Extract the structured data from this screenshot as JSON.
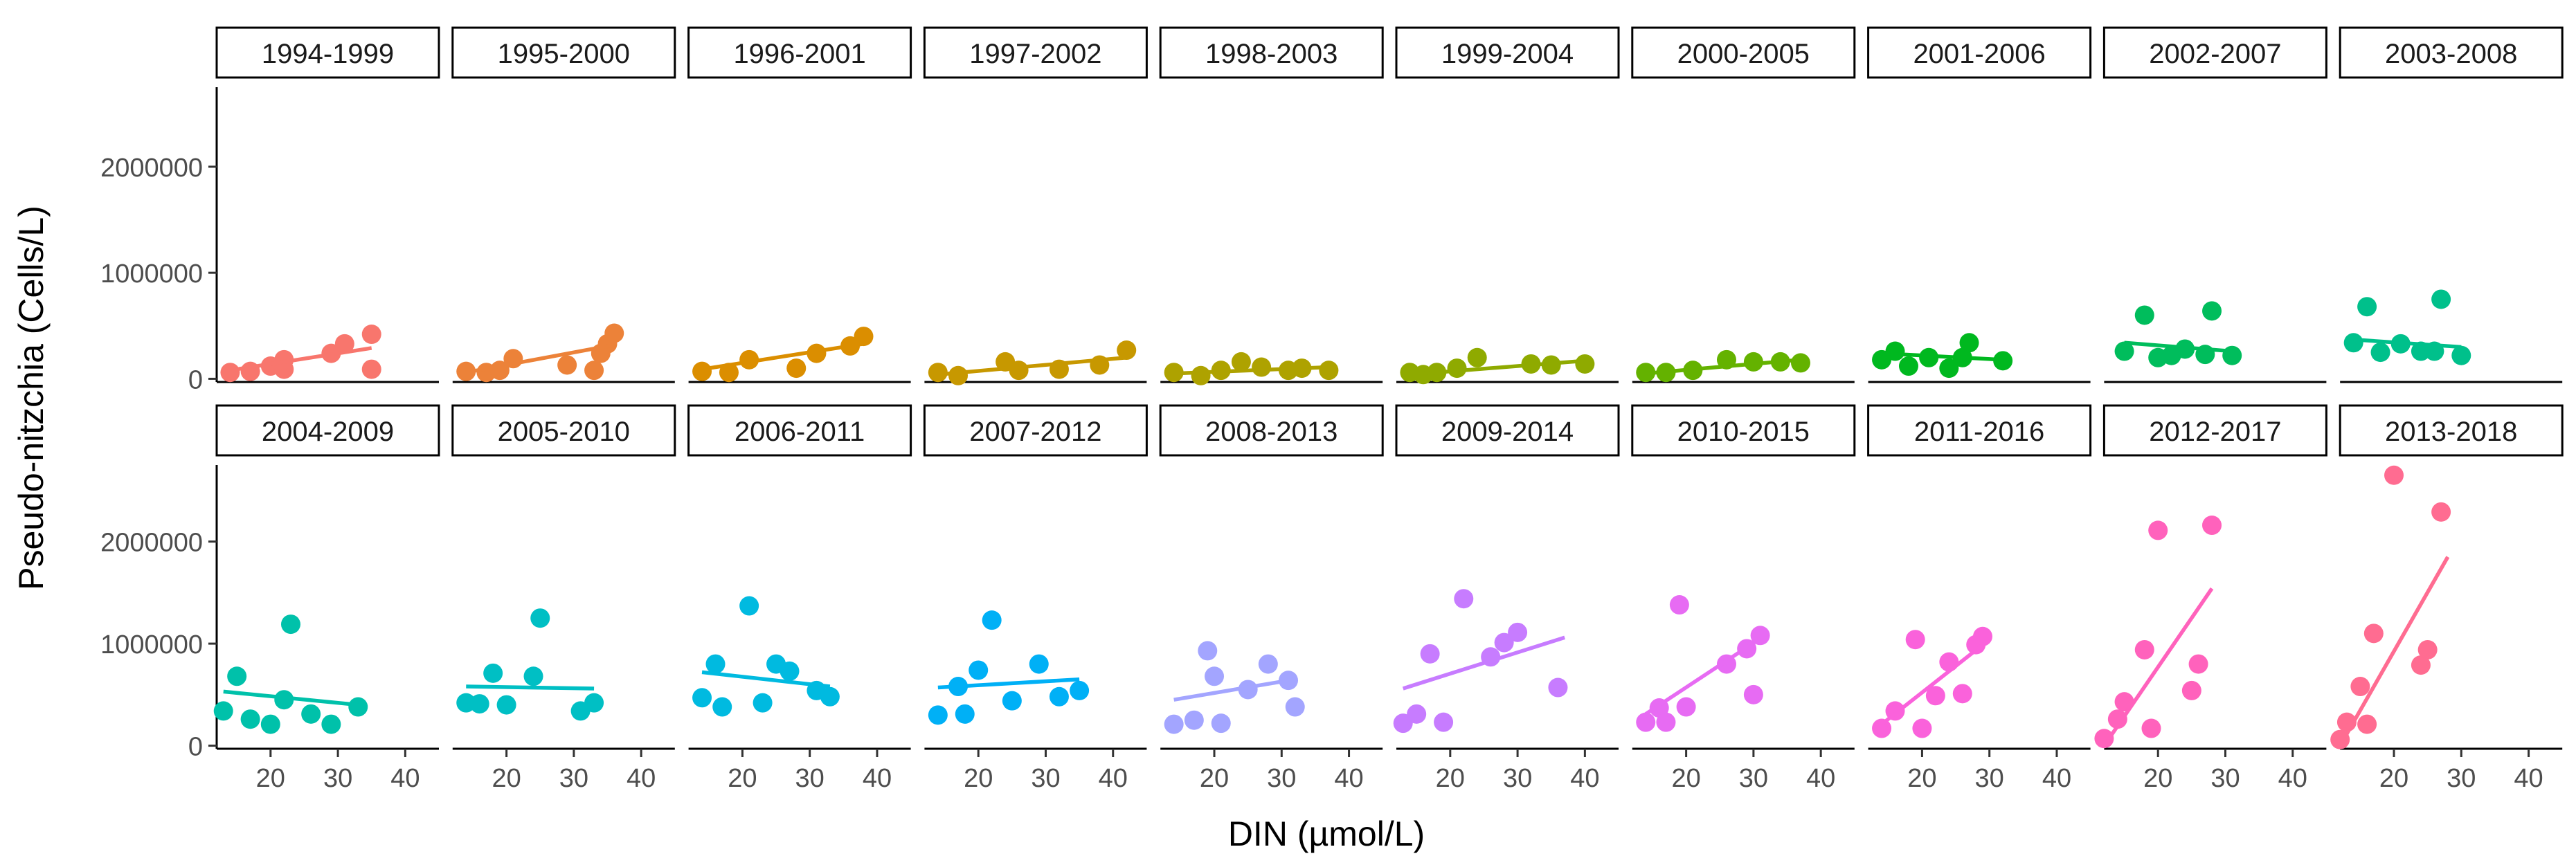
{
  "chart_data": {
    "type": "scatter",
    "subtype": "faceted scatter with linear fit lines",
    "xlabel": "DIN (µmol/L)",
    "ylabel": "Pseudo-nitzchia (Cells/L)",
    "xlim": [
      12,
      45
    ],
    "ylim": [
      -30000,
      2750000
    ],
    "xticks": [
      20,
      30,
      40
    ],
    "yticks": [
      0,
      1000000,
      2000000
    ],
    "layout": {
      "rows": 2,
      "cols": 10
    },
    "panels": [
      {
        "label": "1994-1999",
        "color": "#F8766D",
        "points": [
          [
            14,
            60000
          ],
          [
            17,
            70000
          ],
          [
            20,
            120000
          ],
          [
            22,
            90000
          ],
          [
            22,
            180000
          ],
          [
            29,
            240000
          ],
          [
            31,
            330000
          ],
          [
            35,
            90000
          ],
          [
            35,
            420000
          ]
        ],
        "fit": [
          [
            14,
            80000
          ],
          [
            35,
            290000
          ]
        ]
      },
      {
        "label": "1995-2000",
        "color": "#EC8239",
        "points": [
          [
            14,
            70000
          ],
          [
            17,
            60000
          ],
          [
            19,
            80000
          ],
          [
            21,
            190000
          ],
          [
            29,
            130000
          ],
          [
            33,
            80000
          ],
          [
            34,
            240000
          ],
          [
            35,
            330000
          ],
          [
            36,
            430000
          ]
        ],
        "fit": [
          [
            14,
            60000
          ],
          [
            36,
            320000
          ]
        ]
      },
      {
        "label": "1996-2001",
        "color": "#DB8E00",
        "points": [
          [
            14,
            70000
          ],
          [
            18,
            60000
          ],
          [
            21,
            180000
          ],
          [
            28,
            100000
          ],
          [
            31,
            240000
          ],
          [
            36,
            310000
          ],
          [
            38,
            400000
          ]
        ],
        "fit": [
          [
            14,
            90000
          ],
          [
            38,
            330000
          ]
        ]
      },
      {
        "label": "1997-2002",
        "color": "#C79800",
        "points": [
          [
            14,
            60000
          ],
          [
            17,
            30000
          ],
          [
            24,
            160000
          ],
          [
            26,
            80000
          ],
          [
            32,
            90000
          ],
          [
            38,
            130000
          ],
          [
            42,
            270000
          ]
        ],
        "fit": [
          [
            14,
            40000
          ],
          [
            42,
            200000
          ]
        ]
      },
      {
        "label": "1998-2003",
        "color": "#AEA200",
        "points": [
          [
            14,
            60000
          ],
          [
            18,
            30000
          ],
          [
            21,
            80000
          ],
          [
            24,
            160000
          ],
          [
            27,
            110000
          ],
          [
            31,
            80000
          ],
          [
            33,
            100000
          ],
          [
            37,
            80000
          ]
        ],
        "fit": [
          [
            14,
            50000
          ],
          [
            37,
            110000
          ]
        ]
      },
      {
        "label": "1999-2004",
        "color": "#8FAA00",
        "points": [
          [
            14,
            60000
          ],
          [
            16,
            40000
          ],
          [
            18,
            60000
          ],
          [
            21,
            100000
          ],
          [
            24,
            200000
          ],
          [
            32,
            140000
          ],
          [
            35,
            130000
          ],
          [
            40,
            140000
          ]
        ],
        "fit": [
          [
            14,
            40000
          ],
          [
            40,
            170000
          ]
        ]
      },
      {
        "label": "2000-2005",
        "color": "#64B200",
        "points": [
          [
            14,
            60000
          ],
          [
            17,
            60000
          ],
          [
            21,
            80000
          ],
          [
            26,
            180000
          ],
          [
            30,
            160000
          ],
          [
            34,
            160000
          ],
          [
            37,
            150000
          ]
        ],
        "fit": [
          [
            14,
            50000
          ],
          [
            37,
            180000
          ]
        ]
      },
      {
        "label": "2001-2006",
        "color": "#00B81F",
        "points": [
          [
            14,
            180000
          ],
          [
            16,
            260000
          ],
          [
            18,
            120000
          ],
          [
            21,
            200000
          ],
          [
            24,
            100000
          ],
          [
            26,
            200000
          ],
          [
            27,
            340000
          ],
          [
            32,
            170000
          ]
        ],
        "fit": [
          [
            14,
            240000
          ],
          [
            32,
            180000
          ]
        ]
      },
      {
        "label": "2002-2007",
        "color": "#00BD5C",
        "points": [
          [
            15,
            260000
          ],
          [
            18,
            600000
          ],
          [
            20,
            200000
          ],
          [
            22,
            220000
          ],
          [
            24,
            280000
          ],
          [
            27,
            230000
          ],
          [
            28,
            640000
          ],
          [
            31,
            220000
          ]
        ],
        "fit": [
          [
            15,
            340000
          ],
          [
            31,
            260000
          ]
        ]
      },
      {
        "label": "2003-2008",
        "color": "#00C08B",
        "points": [
          [
            14,
            340000
          ],
          [
            16,
            680000
          ],
          [
            18,
            250000
          ],
          [
            21,
            330000
          ],
          [
            24,
            260000
          ],
          [
            26,
            260000
          ],
          [
            27,
            750000
          ],
          [
            30,
            220000
          ]
        ],
        "fit": [
          [
            14,
            370000
          ],
          [
            30,
            300000
          ]
        ]
      },
      {
        "label": "2004-2009",
        "color": "#00C1AA",
        "points": [
          [
            13,
            340000
          ],
          [
            15,
            680000
          ],
          [
            17,
            260000
          ],
          [
            20,
            210000
          ],
          [
            22,
            450000
          ],
          [
            23,
            1190000
          ],
          [
            26,
            310000
          ],
          [
            29,
            210000
          ],
          [
            33,
            380000
          ]
        ],
        "fit": [
          [
            13,
            530000
          ],
          [
            33,
            400000
          ]
        ]
      },
      {
        "label": "2005-2010",
        "color": "#00BFC4",
        "points": [
          [
            14,
            420000
          ],
          [
            16,
            410000
          ],
          [
            18,
            710000
          ],
          [
            20,
            400000
          ],
          [
            24,
            680000
          ],
          [
            25,
            1250000
          ],
          [
            31,
            340000
          ],
          [
            33,
            420000
          ]
        ],
        "fit": [
          [
            14,
            580000
          ],
          [
            33,
            560000
          ]
        ]
      },
      {
        "label": "2006-2011",
        "color": "#00BAE0",
        "points": [
          [
            14,
            470000
          ],
          [
            16,
            800000
          ],
          [
            17,
            380000
          ],
          [
            21,
            1370000
          ],
          [
            23,
            420000
          ],
          [
            25,
            800000
          ],
          [
            27,
            730000
          ],
          [
            31,
            540000
          ],
          [
            33,
            480000
          ]
        ],
        "fit": [
          [
            14,
            720000
          ],
          [
            33,
            580000
          ]
        ]
      },
      {
        "label": "2007-2012",
        "color": "#00B0F6",
        "points": [
          [
            14,
            300000
          ],
          [
            17,
            580000
          ],
          [
            18,
            310000
          ],
          [
            20,
            740000
          ],
          [
            22,
            1230000
          ],
          [
            25,
            440000
          ],
          [
            29,
            800000
          ],
          [
            32,
            480000
          ],
          [
            35,
            540000
          ]
        ],
        "fit": [
          [
            14,
            570000
          ],
          [
            35,
            650000
          ]
        ]
      },
      {
        "label": "2008-2013",
        "color": "#A3A5FF",
        "points": [
          [
            14,
            210000
          ],
          [
            17,
            250000
          ],
          [
            19,
            930000
          ],
          [
            20,
            680000
          ],
          [
            21,
            220000
          ],
          [
            25,
            550000
          ],
          [
            28,
            800000
          ],
          [
            31,
            640000
          ],
          [
            32,
            380000
          ]
        ],
        "fit": [
          [
            14,
            450000
          ],
          [
            32,
            650000
          ]
        ]
      },
      {
        "label": "2009-2014",
        "color": "#C77CFF",
        "points": [
          [
            13,
            220000
          ],
          [
            15,
            310000
          ],
          [
            17,
            900000
          ],
          [
            19,
            230000
          ],
          [
            22,
            1440000
          ],
          [
            26,
            870000
          ],
          [
            28,
            1010000
          ],
          [
            30,
            1110000
          ],
          [
            36,
            570000
          ]
        ],
        "fit": [
          [
            13,
            560000
          ],
          [
            37,
            1060000
          ]
        ]
      },
      {
        "label": "2010-2015",
        "color": "#E76BF3",
        "points": [
          [
            14,
            230000
          ],
          [
            16,
            370000
          ],
          [
            17,
            230000
          ],
          [
            19,
            1380000
          ],
          [
            20,
            380000
          ],
          [
            26,
            800000
          ],
          [
            29,
            950000
          ],
          [
            30,
            500000
          ],
          [
            31,
            1080000
          ]
        ],
        "fit": [
          [
            14,
            310000
          ],
          [
            31,
            1050000
          ]
        ]
      },
      {
        "label": "2011-2016",
        "color": "#FA62DB",
        "points": [
          [
            14,
            170000
          ],
          [
            16,
            340000
          ],
          [
            19,
            1040000
          ],
          [
            20,
            170000
          ],
          [
            22,
            490000
          ],
          [
            24,
            820000
          ],
          [
            26,
            510000
          ],
          [
            28,
            990000
          ],
          [
            29,
            1070000
          ]
        ],
        "fit": [
          [
            14,
            210000
          ],
          [
            30,
            1040000
          ]
        ]
      },
      {
        "label": "2012-2017",
        "color": "#FF62BC",
        "points": [
          [
            12,
            70000
          ],
          [
            14,
            260000
          ],
          [
            15,
            430000
          ],
          [
            18,
            940000
          ],
          [
            19,
            170000
          ],
          [
            20,
            2110000
          ],
          [
            25,
            540000
          ],
          [
            26,
            800000
          ],
          [
            28,
            2160000
          ]
        ],
        "fit": [
          [
            12,
            0
          ],
          [
            28,
            1540000
          ]
        ]
      },
      {
        "label": "2013-2018",
        "color": "#FF6C91",
        "points": [
          [
            12,
            60000
          ],
          [
            13,
            230000
          ],
          [
            15,
            580000
          ],
          [
            16,
            210000
          ],
          [
            17,
            1100000
          ],
          [
            20,
            2650000
          ],
          [
            24,
            790000
          ],
          [
            25,
            940000
          ],
          [
            27,
            2290000
          ]
        ],
        "fit": [
          [
            12,
            0
          ],
          [
            28,
            1850000
          ]
        ]
      }
    ]
  }
}
